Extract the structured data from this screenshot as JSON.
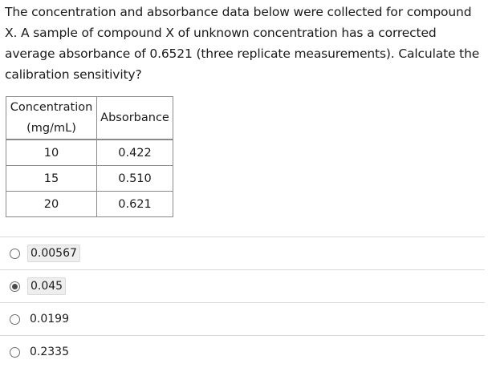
{
  "question": {
    "text": "The concentration and absorbance data below were collected for compound X. A sample of compound X of unknown concentration has a corrected average absorbance of 0.6521 (three replicate measurements). Calculate the calibration sensitivity?"
  },
  "table": {
    "headers": {
      "concentration_line1": "Concentration",
      "concentration_line2": "(mg/mL)",
      "absorbance": "Absorbance"
    },
    "rows": [
      {
        "concentration": "10",
        "absorbance": "0.422"
      },
      {
        "concentration": "15",
        "absorbance": "0.510"
      },
      {
        "concentration": "20",
        "absorbance": "0.621"
      }
    ]
  },
  "options": [
    {
      "label": "0.00567",
      "selected": false
    },
    {
      "label": "0.045",
      "selected": true
    },
    {
      "label": "0.0199",
      "selected": false
    },
    {
      "label": "0.2335",
      "selected": false
    }
  ]
}
